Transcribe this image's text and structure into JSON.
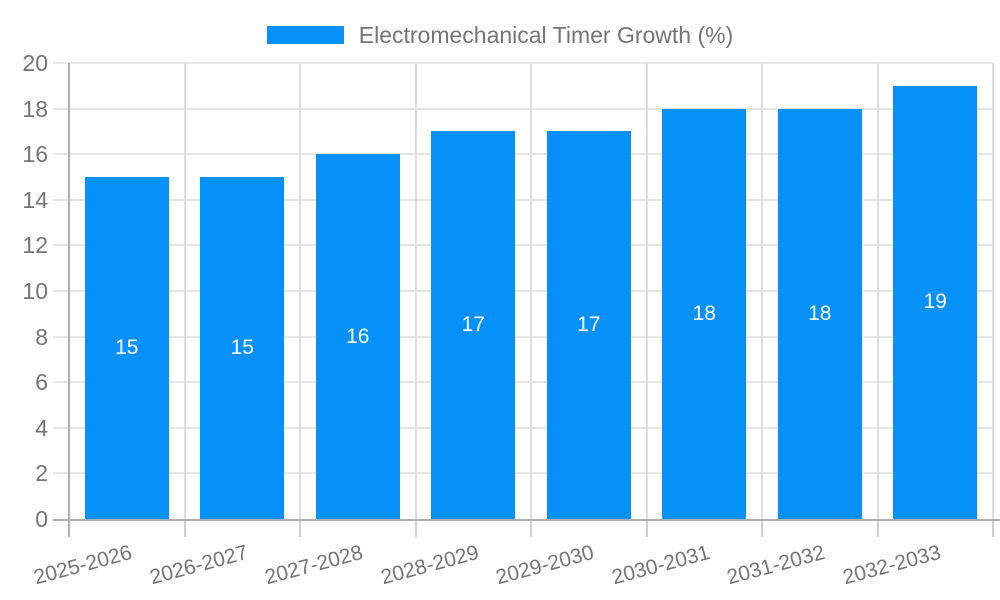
{
  "legend": {
    "label": "Electromechanical Timer Growth (%)",
    "swatch_color": "#0591f8"
  },
  "chart_data": {
    "type": "bar",
    "title": "Electromechanical Timer Growth (%)",
    "categories": [
      "2025-2026",
      "2026-2027",
      "2027-2028",
      "2028-2029",
      "2029-2030",
      "2030-2031",
      "2031-2032",
      "2032-2033"
    ],
    "values": [
      15,
      15,
      16,
      17,
      17,
      18,
      18,
      19
    ],
    "xlabel": "",
    "ylabel": "",
    "ylim": [
      0,
      20
    ],
    "ytick_step": 2,
    "yticks": [
      0,
      2,
      4,
      6,
      8,
      10,
      12,
      14,
      16,
      18,
      20
    ],
    "grid": true,
    "vertical_gridlines": true,
    "legend_position": "top",
    "bar_color": "#0591f8",
    "value_label_color": "#ffffff",
    "value_labels": "inside-center"
  },
  "style": {
    "axis_text_color": "#757575",
    "grid_color": "#e6e6e6",
    "vgrid_color": "#dedede",
    "axis_line_color": "#b0b0b0",
    "tick_color": "#cfcfcf",
    "background": "#ffffff"
  }
}
